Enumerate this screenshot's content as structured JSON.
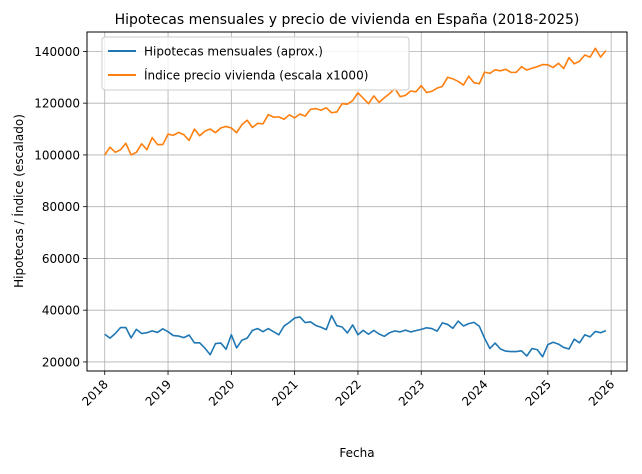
{
  "chart_data": {
    "type": "line",
    "title": "Hipotecas mensuales y precio de vivienda en España (2018-2025)",
    "xlabel": "Fecha",
    "ylabel": "Hipotecas / Índice (escalado)",
    "x_start": "2018-01",
    "frequency": "monthly",
    "xlim": [
      2017.72,
      2026.25
    ],
    "ylim": [
      16500,
      147500
    ],
    "x_ticks": [
      "2018",
      "2019",
      "2020",
      "2021",
      "2022",
      "2023",
      "2024",
      "2025",
      "2026"
    ],
    "y_ticks": [
      "20000",
      "40000",
      "60000",
      "80000",
      "100000",
      "120000",
      "140000"
    ],
    "grid": true,
    "legend_position": "top-left",
    "series": [
      {
        "name": "Hipotecas mensuales (aprox.)",
        "color": "#1f77b4",
        "values": [
          30700,
          29200,
          31000,
          33300,
          33300,
          29300,
          32600,
          31000,
          31300,
          32000,
          31400,
          32800,
          31700,
          30200,
          30000,
          29400,
          30400,
          27400,
          27400,
          25300,
          22800,
          27100,
          27300,
          24900,
          30500,
          25400,
          28400,
          29200,
          32200,
          32900,
          31700,
          32900,
          31700,
          30500,
          33900,
          35300,
          37000,
          37400,
          35200,
          35500,
          34100,
          33400,
          32500,
          37900,
          34000,
          33500,
          31200,
          34300,
          30500,
          32200,
          30700,
          32200,
          30800,
          29900,
          31300,
          32000,
          31600,
          32300,
          31600,
          32100,
          32600,
          33200,
          32900,
          31900,
          35100,
          34500,
          33000,
          35800,
          33900,
          34800,
          35300,
          33800,
          29200,
          25200,
          27300,
          25000,
          24200,
          24000,
          24000,
          24300,
          22300,
          25200,
          24700,
          22000,
          26700,
          27600,
          26900,
          25600,
          25000,
          28800,
          27400,
          30500,
          29700,
          31800,
          31300,
          32100
        ]
      },
      {
        "name": "Índice precio vivienda (escala x1000)",
        "color": "#ff7f0e",
        "values": [
          100000,
          103000,
          101000,
          102000,
          104500,
          100000,
          101000,
          104300,
          102000,
          106700,
          104000,
          104000,
          108000,
          107600,
          108700,
          107800,
          105600,
          110000,
          107400,
          109200,
          110000,
          108600,
          110400,
          111000,
          110400,
          108600,
          111700,
          113400,
          110600,
          112200,
          112000,
          115600,
          114600,
          114700,
          113800,
          115500,
          114300,
          115800,
          115000,
          117600,
          117900,
          117300,
          118200,
          116300,
          116600,
          119800,
          119600,
          121000,
          124000,
          121900,
          119800,
          122800,
          120300,
          122100,
          123700,
          125700,
          122500,
          123000,
          124700,
          124400,
          126800,
          124100,
          124600,
          125800,
          126500,
          130000,
          129400,
          128400,
          127000,
          130400,
          127900,
          127500,
          132000,
          131500,
          132900,
          132500,
          133100,
          131900,
          131900,
          134100,
          132800,
          133500,
          134100,
          134900,
          134800,
          133800,
          135400,
          133400,
          137600,
          135200,
          136200,
          138600,
          137800,
          141200,
          137800,
          140300
        ]
      }
    ]
  }
}
